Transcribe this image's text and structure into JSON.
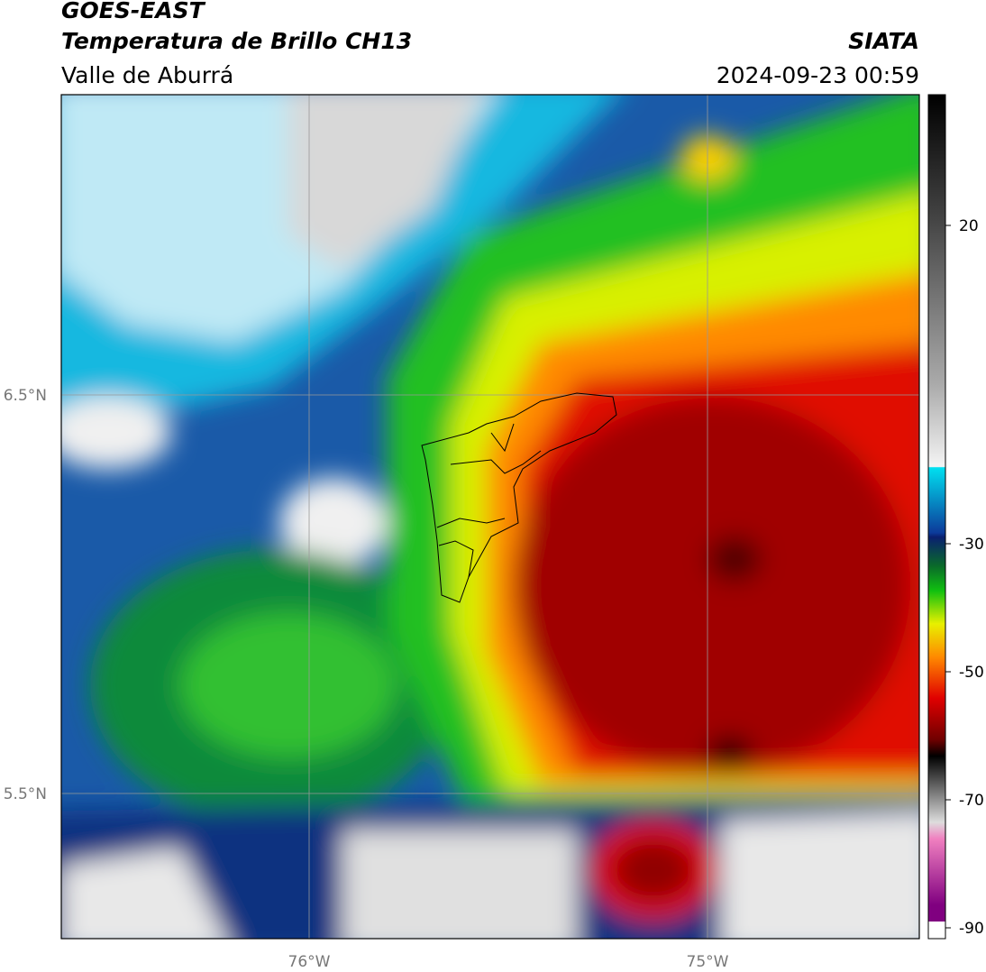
{
  "header": {
    "title": "GOES-EAST",
    "subtitle": "Temperatura de Brillo CH13",
    "region": "Valle de Aburrá",
    "source": "SIATA",
    "datetime": "2024-09-23 00:59"
  },
  "map": {
    "lat_labels": [
      "6.5°N",
      "5.5°N"
    ],
    "lon_labels": [
      "76°W",
      "75°W"
    ]
  },
  "colorbar": {
    "tick_labels": [
      "20",
      "-30",
      "-50",
      "-70",
      "-90"
    ]
  }
}
